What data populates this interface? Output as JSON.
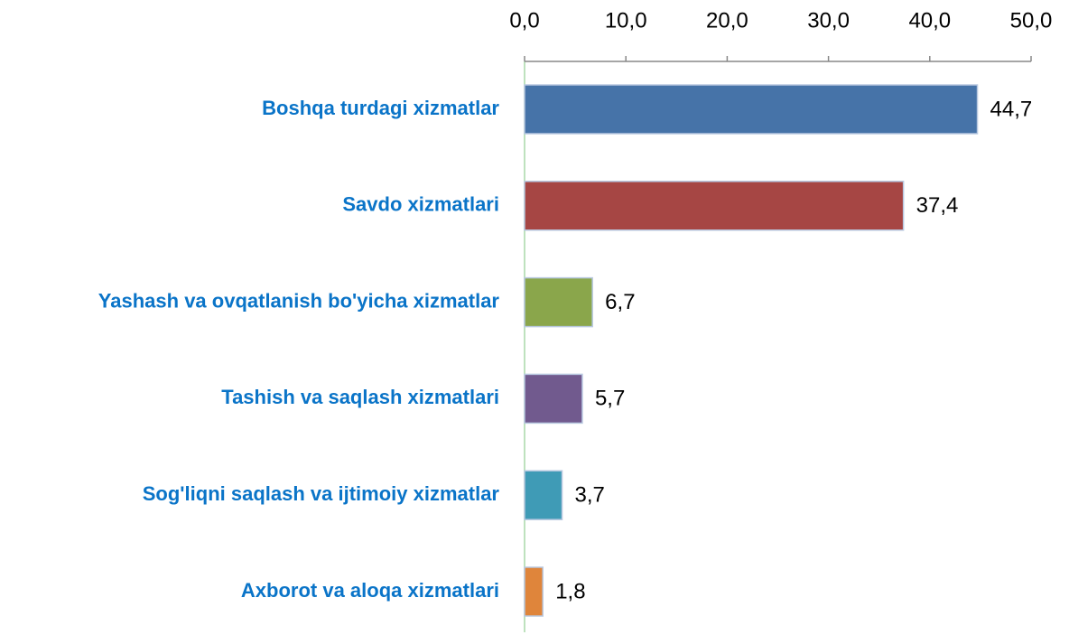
{
  "chart_data": {
    "type": "bar",
    "orientation": "horizontal",
    "categories": [
      "Boshqa turdagi xizmatlar",
      "Savdo xizmatlari",
      "Yashash va ovqatlanish bo'yicha xizmatlar",
      "Tashish va saqlash xizmatlari",
      "Sog'liqni saqlash va ijtimoiy xizmatlar",
      "Axborot va aloqa xizmatlari"
    ],
    "values": [
      44.7,
      37.4,
      6.7,
      5.7,
      3.7,
      1.8
    ],
    "value_labels": [
      "44,7",
      "37,4",
      "6,7",
      "5,7",
      "3,7",
      "1,8"
    ],
    "colors": [
      "#4673a8",
      "#a64644",
      "#8aa64b",
      "#715a8e",
      "#3f9bb6",
      "#df853b"
    ],
    "xlim": [
      0,
      50
    ],
    "xticks": [
      {
        "value": 0,
        "label": "0,0"
      },
      {
        "value": 10,
        "label": "10,0"
      },
      {
        "value": 20,
        "label": "20,0"
      },
      {
        "value": 30,
        "label": "30,0"
      },
      {
        "value": 40,
        "label": "40,0"
      },
      {
        "value": 50,
        "label": "50,0"
      }
    ]
  }
}
